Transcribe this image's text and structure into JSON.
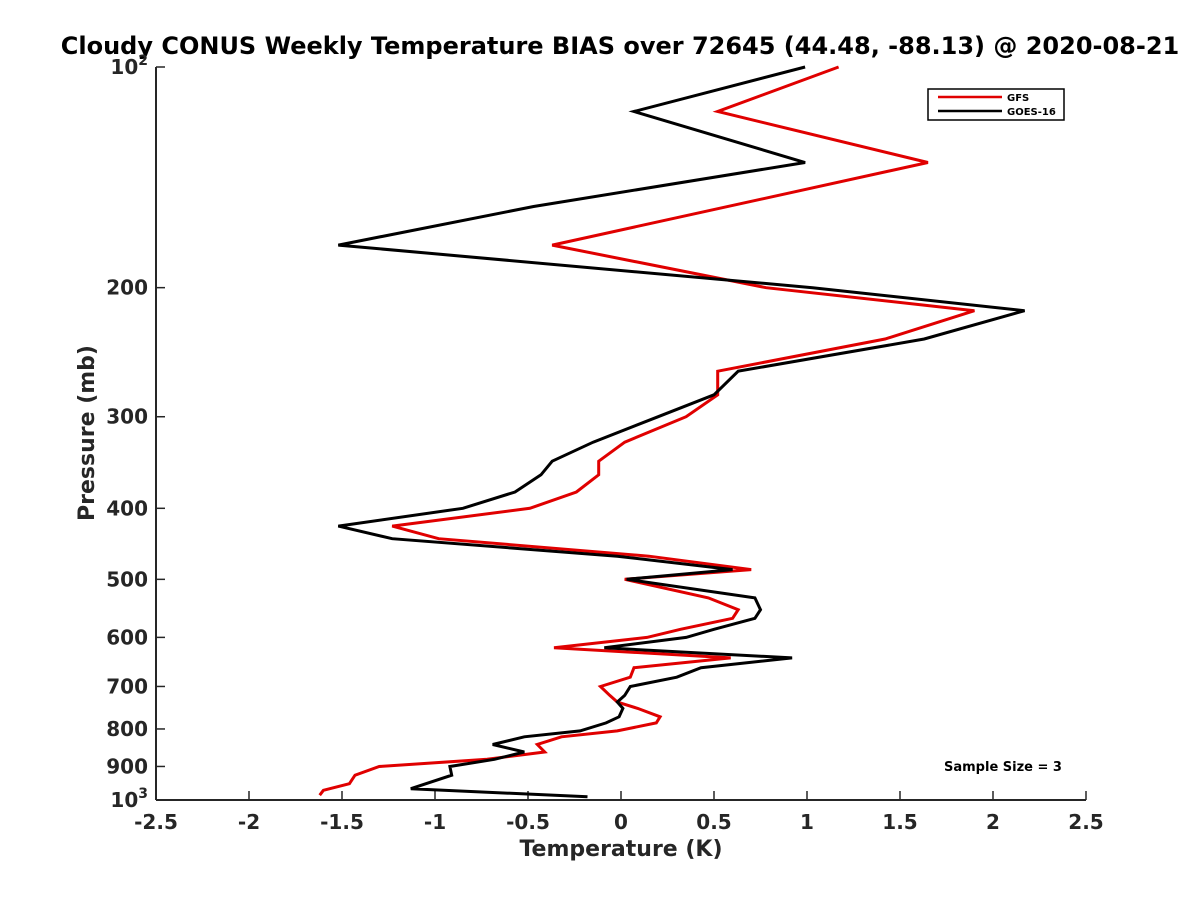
{
  "chart_data": {
    "type": "line",
    "title": "Cloudy CONUS Weekly Temperature BIAS over 72645 (44.48, -88.13) @ 2020-08-21",
    "xlabel": "Temperature (K)",
    "ylabel": "Pressure (mb)",
    "xlim": [
      -2.5,
      2.5
    ],
    "ylim": [
      100,
      1000
    ],
    "y_scale": "log",
    "y_reversed": true,
    "x_ticks": [
      "-2.5",
      "-2",
      "-1.5",
      "-1",
      "-0.5",
      "0",
      "0.5",
      "1",
      "1.5",
      "2",
      "2.5"
    ],
    "y_ticks": [
      {
        "value": 100,
        "base": "10",
        "exp": "2"
      },
      {
        "value": 200,
        "label": "200"
      },
      {
        "value": 300,
        "label": "300"
      },
      {
        "value": 400,
        "label": "400"
      },
      {
        "value": 500,
        "label": "500"
      },
      {
        "value": 600,
        "label": "600"
      },
      {
        "value": 700,
        "label": "700"
      },
      {
        "value": 800,
        "label": "800"
      },
      {
        "value": 900,
        "label": "900"
      },
      {
        "value": 1000,
        "base": "10",
        "exp": "3"
      }
    ],
    "grid": false,
    "legend_position": "top-right",
    "annotation": "Sample Size = 3",
    "series": [
      {
        "name": "GFS",
        "color": "#e00000",
        "points": [
          {
            "x": 1.17,
            "p": 100
          },
          {
            "x": 0.52,
            "p": 115
          },
          {
            "x": 1.65,
            "p": 135
          },
          {
            "x": -0.37,
            "p": 175
          },
          {
            "x": 0.78,
            "p": 200
          },
          {
            "x": 1.9,
            "p": 215
          },
          {
            "x": 1.42,
            "p": 235
          },
          {
            "x": 0.52,
            "p": 260
          },
          {
            "x": 0.52,
            "p": 280
          },
          {
            "x": 0.35,
            "p": 300
          },
          {
            "x": 0.02,
            "p": 325
          },
          {
            "x": -0.12,
            "p": 345
          },
          {
            "x": -0.12,
            "p": 360
          },
          {
            "x": -0.24,
            "p": 380
          },
          {
            "x": -0.49,
            "p": 400
          },
          {
            "x": -1.23,
            "p": 423
          },
          {
            "x": -0.98,
            "p": 440
          },
          {
            "x": 0.15,
            "p": 465
          },
          {
            "x": 0.7,
            "p": 485
          },
          {
            "x": 0.02,
            "p": 500
          },
          {
            "x": 0.47,
            "p": 530
          },
          {
            "x": 0.63,
            "p": 550
          },
          {
            "x": 0.6,
            "p": 565
          },
          {
            "x": 0.32,
            "p": 585
          },
          {
            "x": 0.14,
            "p": 600
          },
          {
            "x": -0.36,
            "p": 620
          },
          {
            "x": 0.59,
            "p": 640
          },
          {
            "x": 0.07,
            "p": 660
          },
          {
            "x": 0.05,
            "p": 680
          },
          {
            "x": -0.11,
            "p": 700
          },
          {
            "x": -0.06,
            "p": 720
          },
          {
            "x": -0.02,
            "p": 735
          },
          {
            "x": 0.09,
            "p": 750
          },
          {
            "x": 0.21,
            "p": 770
          },
          {
            "x": 0.19,
            "p": 785
          },
          {
            "x": -0.02,
            "p": 805
          },
          {
            "x": -0.32,
            "p": 820
          },
          {
            "x": -0.45,
            "p": 840
          },
          {
            "x": -0.41,
            "p": 860
          },
          {
            "x": -0.72,
            "p": 880
          },
          {
            "x": -1.3,
            "p": 900
          },
          {
            "x": -1.43,
            "p": 925
          },
          {
            "x": -1.46,
            "p": 950
          },
          {
            "x": -1.6,
            "p": 970
          },
          {
            "x": -1.62,
            "p": 985
          }
        ]
      },
      {
        "name": "GOES-16",
        "color": "#000000",
        "points": [
          {
            "x": 0.99,
            "p": 100
          },
          {
            "x": 0.07,
            "p": 115
          },
          {
            "x": 0.99,
            "p": 135
          },
          {
            "x": -0.47,
            "p": 155
          },
          {
            "x": -1.52,
            "p": 175
          },
          {
            "x": 1.03,
            "p": 200
          },
          {
            "x": 2.17,
            "p": 215
          },
          {
            "x": 1.63,
            "p": 235
          },
          {
            "x": 0.63,
            "p": 260
          },
          {
            "x": 0.5,
            "p": 280
          },
          {
            "x": 0.2,
            "p": 300
          },
          {
            "x": -0.15,
            "p": 325
          },
          {
            "x": -0.37,
            "p": 345
          },
          {
            "x": -0.43,
            "p": 360
          },
          {
            "x": -0.57,
            "p": 380
          },
          {
            "x": -0.85,
            "p": 400
          },
          {
            "x": -1.52,
            "p": 423
          },
          {
            "x": -1.23,
            "p": 440
          },
          {
            "x": -0.02,
            "p": 465
          },
          {
            "x": 0.6,
            "p": 485
          },
          {
            "x": 0.03,
            "p": 500
          },
          {
            "x": 0.72,
            "p": 530
          },
          {
            "x": 0.75,
            "p": 550
          },
          {
            "x": 0.72,
            "p": 565
          },
          {
            "x": 0.5,
            "p": 585
          },
          {
            "x": 0.35,
            "p": 600
          },
          {
            "x": -0.09,
            "p": 620
          },
          {
            "x": 0.92,
            "p": 640
          },
          {
            "x": 0.43,
            "p": 660
          },
          {
            "x": 0.3,
            "p": 680
          },
          {
            "x": 0.05,
            "p": 700
          },
          {
            "x": 0.02,
            "p": 720
          },
          {
            "x": -0.02,
            "p": 735
          },
          {
            "x": 0.01,
            "p": 750
          },
          {
            "x": -0.01,
            "p": 770
          },
          {
            "x": -0.08,
            "p": 785
          },
          {
            "x": -0.22,
            "p": 805
          },
          {
            "x": -0.52,
            "p": 820
          },
          {
            "x": -0.69,
            "p": 840
          },
          {
            "x": -0.52,
            "p": 860
          },
          {
            "x": -0.68,
            "p": 880
          },
          {
            "x": -0.92,
            "p": 900
          },
          {
            "x": -0.91,
            "p": 925
          },
          {
            "x": -1.13,
            "p": 965
          },
          {
            "x": -0.18,
            "p": 990
          }
        ]
      }
    ]
  }
}
